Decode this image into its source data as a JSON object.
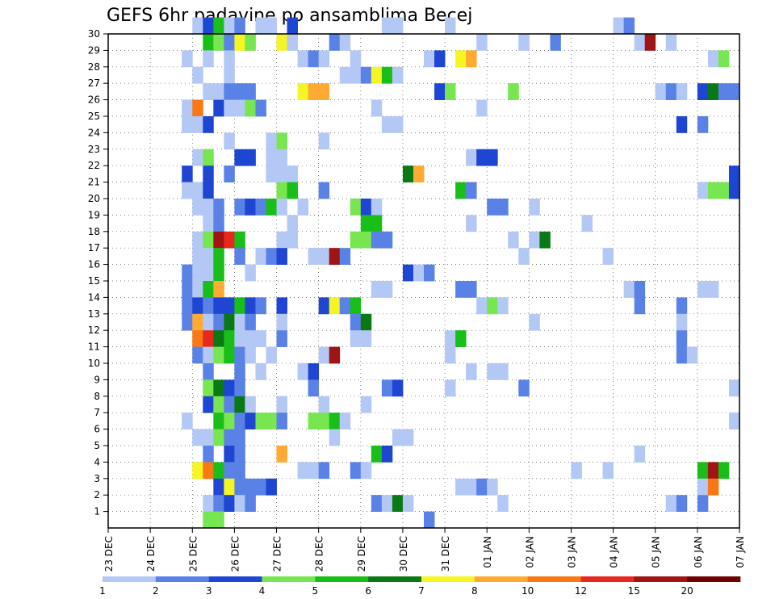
{
  "chart_data": {
    "type": "heatmap",
    "title": "GEFS 6hr padavine po ansamblima Becej",
    "xlabel": "",
    "ylabel": "",
    "x_ticks": [
      "23 DEC",
      "24 DEC",
      "25 DEC",
      "26 DEC",
      "27 DEC",
      "28 DEC",
      "29 DEC",
      "30 DEC",
      "31 DEC",
      "01 JAN",
      "02 JAN",
      "03 JAN",
      "04 JAN",
      "05 JAN",
      "06 JAN",
      "07 JAN"
    ],
    "y_ticks": [
      "1",
      "2",
      "3",
      "4",
      "5",
      "6",
      "7",
      "8",
      "9",
      "10",
      "11",
      "12",
      "13",
      "14",
      "15",
      "16",
      "17",
      "18",
      "19",
      "20",
      "21",
      "22",
      "23",
      "24",
      "25",
      "26",
      "27",
      "28",
      "29",
      "30"
    ],
    "x_unit": "6-hour step (4 per day)",
    "grid": true,
    "legend": {
      "position": "bottom",
      "labels": [
        "1",
        "2",
        "3",
        "4",
        "5",
        "6",
        "7",
        "8",
        "10",
        "12",
        "15",
        "20"
      ],
      "colors": [
        "#b4c8f5",
        "#5a82e6",
        "#1e46d2",
        "#78e650",
        "#19be19",
        "#0a7814",
        "#f5f523",
        "#ffaa32",
        "#fa7814",
        "#e6281e",
        "#a01414",
        "#6e0000"
      ]
    },
    "cells_encoding": "[member, timestep (0 = 23 DEC 00z), color class 0-11]",
    "cells": [
      [
        30,
        8,
        0
      ],
      [
        30,
        9,
        2
      ],
      [
        30,
        10,
        4
      ],
      [
        30,
        11,
        0
      ],
      [
        30,
        12,
        1
      ],
      [
        30,
        14,
        0
      ],
      [
        30,
        15,
        0
      ],
      [
        30,
        17,
        2
      ],
      [
        30,
        26,
        0
      ],
      [
        30,
        27,
        0
      ],
      [
        30,
        32,
        0
      ],
      [
        30,
        48,
        0
      ],
      [
        30,
        49,
        1
      ],
      [
        29,
        9,
        4
      ],
      [
        29,
        10,
        3
      ],
      [
        29,
        11,
        1
      ],
      [
        29,
        12,
        6
      ],
      [
        29,
        13,
        3
      ],
      [
        29,
        16,
        6
      ],
      [
        29,
        17,
        0
      ],
      [
        29,
        21,
        1
      ],
      [
        29,
        22,
        0
      ],
      [
        29,
        35,
        0
      ],
      [
        29,
        39,
        0
      ],
      [
        29,
        42,
        1
      ],
      [
        29,
        50,
        0
      ],
      [
        29,
        51,
        10
      ],
      [
        29,
        53,
        0
      ],
      [
        28,
        7,
        0
      ],
      [
        28,
        9,
        0
      ],
      [
        28,
        11,
        0
      ],
      [
        28,
        18,
        0
      ],
      [
        28,
        19,
        1
      ],
      [
        28,
        20,
        0
      ],
      [
        28,
        23,
        0
      ],
      [
        28,
        30,
        0
      ],
      [
        28,
        31,
        2
      ],
      [
        28,
        33,
        6
      ],
      [
        28,
        34,
        7
      ],
      [
        28,
        57,
        0
      ],
      [
        28,
        58,
        3
      ],
      [
        27,
        8,
        0
      ],
      [
        27,
        11,
        0
      ],
      [
        27,
        22,
        0
      ],
      [
        27,
        23,
        0
      ],
      [
        27,
        24,
        1
      ],
      [
        27,
        25,
        6
      ],
      [
        27,
        26,
        4
      ],
      [
        27,
        27,
        0
      ],
      [
        26,
        9,
        0
      ],
      [
        26,
        10,
        0
      ],
      [
        26,
        11,
        1
      ],
      [
        26,
        12,
        1
      ],
      [
        26,
        13,
        1
      ],
      [
        26,
        18,
        6
      ],
      [
        26,
        19,
        7
      ],
      [
        26,
        20,
        7
      ],
      [
        26,
        31,
        2
      ],
      [
        26,
        32,
        3
      ],
      [
        26,
        38,
        3
      ],
      [
        26,
        52,
        0
      ],
      [
        26,
        53,
        1
      ],
      [
        26,
        54,
        0
      ],
      [
        26,
        56,
        2
      ],
      [
        26,
        57,
        5
      ],
      [
        26,
        58,
        1
      ],
      [
        26,
        59,
        1
      ],
      [
        25,
        7,
        0
      ],
      [
        25,
        8,
        8
      ],
      [
        25,
        10,
        2
      ],
      [
        25,
        11,
        0
      ],
      [
        25,
        12,
        0
      ],
      [
        25,
        13,
        3
      ],
      [
        25,
        14,
        1
      ],
      [
        25,
        25,
        0
      ],
      [
        25,
        35,
        0
      ],
      [
        24,
        7,
        0
      ],
      [
        24,
        8,
        0
      ],
      [
        24,
        9,
        2
      ],
      [
        24,
        26,
        0
      ],
      [
        24,
        27,
        0
      ],
      [
        24,
        54,
        2
      ],
      [
        24,
        56,
        1
      ],
      [
        23,
        11,
        0
      ],
      [
        23,
        15,
        0
      ],
      [
        23,
        16,
        3
      ],
      [
        23,
        20,
        0
      ],
      [
        22,
        8,
        0
      ],
      [
        22,
        9,
        3
      ],
      [
        22,
        12,
        2
      ],
      [
        22,
        13,
        2
      ],
      [
        22,
        15,
        0
      ],
      [
        22,
        16,
        0
      ],
      [
        22,
        34,
        0
      ],
      [
        22,
        35,
        2
      ],
      [
        22,
        36,
        2
      ],
      [
        21,
        7,
        2
      ],
      [
        21,
        9,
        2
      ],
      [
        21,
        11,
        1
      ],
      [
        21,
        15,
        0
      ],
      [
        21,
        16,
        0
      ],
      [
        21,
        17,
        0
      ],
      [
        21,
        28,
        5
      ],
      [
        21,
        29,
        7
      ],
      [
        21,
        59,
        2
      ],
      [
        20,
        7,
        0
      ],
      [
        20,
        8,
        0
      ],
      [
        20,
        9,
        2
      ],
      [
        20,
        16,
        3
      ],
      [
        20,
        17,
        4
      ],
      [
        20,
        20,
        1
      ],
      [
        20,
        33,
        4
      ],
      [
        20,
        34,
        1
      ],
      [
        20,
        56,
        0
      ],
      [
        20,
        57,
        3
      ],
      [
        20,
        58,
        3
      ],
      [
        20,
        59,
        2
      ],
      [
        19,
        8,
        0
      ],
      [
        19,
        9,
        0
      ],
      [
        19,
        10,
        1
      ],
      [
        19,
        12,
        1
      ],
      [
        19,
        13,
        2
      ],
      [
        19,
        14,
        1
      ],
      [
        19,
        15,
        4
      ],
      [
        19,
        16,
        0
      ],
      [
        19,
        18,
        0
      ],
      [
        19,
        23,
        3
      ],
      [
        19,
        24,
        2
      ],
      [
        19,
        25,
        0
      ],
      [
        19,
        36,
        1
      ],
      [
        19,
        37,
        1
      ],
      [
        19,
        40,
        0
      ],
      [
        18,
        9,
        0
      ],
      [
        18,
        10,
        1
      ],
      [
        18,
        17,
        0
      ],
      [
        18,
        24,
        4
      ],
      [
        18,
        25,
        4
      ],
      [
        18,
        34,
        0
      ],
      [
        18,
        45,
        0
      ],
      [
        17,
        8,
        0
      ],
      [
        17,
        9,
        3
      ],
      [
        17,
        10,
        10
      ],
      [
        17,
        11,
        9
      ],
      [
        17,
        12,
        4
      ],
      [
        17,
        16,
        0
      ],
      [
        17,
        17,
        0
      ],
      [
        17,
        23,
        3
      ],
      [
        17,
        24,
        3
      ],
      [
        17,
        25,
        1
      ],
      [
        17,
        26,
        1
      ],
      [
        17,
        38,
        0
      ],
      [
        17,
        40,
        0
      ],
      [
        17,
        41,
        5
      ],
      [
        16,
        8,
        0
      ],
      [
        16,
        9,
        0
      ],
      [
        16,
        10,
        4
      ],
      [
        16,
        12,
        1
      ],
      [
        16,
        14,
        0
      ],
      [
        16,
        15,
        1
      ],
      [
        16,
        16,
        2
      ],
      [
        16,
        19,
        0
      ],
      [
        16,
        20,
        0
      ],
      [
        16,
        21,
        10
      ],
      [
        16,
        22,
        1
      ],
      [
        16,
        39,
        0
      ],
      [
        16,
        47,
        0
      ],
      [
        15,
        7,
        1
      ],
      [
        15,
        8,
        0
      ],
      [
        15,
        9,
        0
      ],
      [
        15,
        10,
        4
      ],
      [
        15,
        13,
        0
      ],
      [
        15,
        28,
        2
      ],
      [
        15,
        29,
        0
      ],
      [
        15,
        30,
        1
      ],
      [
        14,
        7,
        1
      ],
      [
        14,
        8,
        0
      ],
      [
        14,
        9,
        4
      ],
      [
        14,
        10,
        7
      ],
      [
        14,
        25,
        0
      ],
      [
        14,
        26,
        0
      ],
      [
        14,
        33,
        1
      ],
      [
        14,
        34,
        1
      ],
      [
        14,
        49,
        0
      ],
      [
        14,
        50,
        1
      ],
      [
        14,
        56,
        0
      ],
      [
        14,
        57,
        0
      ],
      [
        13,
        7,
        1
      ],
      [
        13,
        8,
        2
      ],
      [
        13,
        9,
        1
      ],
      [
        13,
        10,
        2
      ],
      [
        13,
        11,
        2
      ],
      [
        13,
        12,
        4
      ],
      [
        13,
        13,
        2
      ],
      [
        13,
        14,
        1
      ],
      [
        13,
        16,
        2
      ],
      [
        13,
        20,
        2
      ],
      [
        13,
        21,
        6
      ],
      [
        13,
        22,
        1
      ],
      [
        13,
        23,
        4
      ],
      [
        13,
        35,
        0
      ],
      [
        13,
        36,
        3
      ],
      [
        13,
        37,
        0
      ],
      [
        13,
        50,
        1
      ],
      [
        13,
        54,
        1
      ],
      [
        12,
        7,
        1
      ],
      [
        12,
        8,
        7
      ],
      [
        12,
        9,
        0
      ],
      [
        12,
        10,
        1
      ],
      [
        12,
        11,
        5
      ],
      [
        12,
        12,
        0
      ],
      [
        12,
        13,
        1
      ],
      [
        12,
        16,
        0
      ],
      [
        12,
        23,
        1
      ],
      [
        12,
        24,
        5
      ],
      [
        12,
        40,
        0
      ],
      [
        12,
        54,
        0
      ],
      [
        11,
        8,
        8
      ],
      [
        11,
        9,
        9
      ],
      [
        11,
        10,
        5
      ],
      [
        11,
        11,
        4
      ],
      [
        11,
        12,
        0
      ],
      [
        11,
        13,
        0
      ],
      [
        11,
        14,
        0
      ],
      [
        11,
        16,
        1
      ],
      [
        11,
        23,
        0
      ],
      [
        11,
        24,
        0
      ],
      [
        11,
        32,
        0
      ],
      [
        11,
        33,
        4
      ],
      [
        11,
        54,
        1
      ],
      [
        10,
        8,
        1
      ],
      [
        10,
        9,
        0
      ],
      [
        10,
        10,
        3
      ],
      [
        10,
        11,
        4
      ],
      [
        10,
        12,
        1
      ],
      [
        10,
        13,
        0
      ],
      [
        10,
        15,
        0
      ],
      [
        10,
        20,
        0
      ],
      [
        10,
        21,
        10
      ],
      [
        10,
        32,
        0
      ],
      [
        10,
        54,
        1
      ],
      [
        10,
        55,
        0
      ],
      [
        9,
        9,
        1
      ],
      [
        9,
        12,
        1
      ],
      [
        9,
        14,
        0
      ],
      [
        9,
        18,
        0
      ],
      [
        9,
        19,
        2
      ],
      [
        9,
        34,
        0
      ],
      [
        9,
        36,
        0
      ],
      [
        9,
        37,
        0
      ],
      [
        8,
        9,
        3
      ],
      [
        8,
        10,
        5
      ],
      [
        8,
        11,
        2
      ],
      [
        8,
        12,
        1
      ],
      [
        8,
        19,
        1
      ],
      [
        8,
        26,
        1
      ],
      [
        8,
        27,
        2
      ],
      [
        8,
        32,
        0
      ],
      [
        8,
        39,
        1
      ],
      [
        8,
        59,
        0
      ],
      [
        7,
        9,
        2
      ],
      [
        7,
        10,
        3
      ],
      [
        7,
        11,
        1
      ],
      [
        7,
        12,
        5
      ],
      [
        7,
        13,
        0
      ],
      [
        7,
        16,
        0
      ],
      [
        7,
        20,
        0
      ],
      [
        7,
        24,
        0
      ],
      [
        6,
        7,
        0
      ],
      [
        6,
        10,
        4
      ],
      [
        6,
        11,
        3
      ],
      [
        6,
        12,
        1
      ],
      [
        6,
        13,
        2
      ],
      [
        6,
        14,
        3
      ],
      [
        6,
        15,
        3
      ],
      [
        6,
        16,
        1
      ],
      [
        6,
        19,
        3
      ],
      [
        6,
        20,
        3
      ],
      [
        6,
        21,
        4
      ],
      [
        6,
        22,
        0
      ],
      [
        6,
        59,
        0
      ],
      [
        5,
        8,
        0
      ],
      [
        5,
        9,
        0
      ],
      [
        5,
        10,
        3
      ],
      [
        5,
        11,
        1
      ],
      [
        5,
        12,
        1
      ],
      [
        5,
        21,
        0
      ],
      [
        5,
        27,
        0
      ],
      [
        5,
        28,
        0
      ],
      [
        4,
        9,
        1
      ],
      [
        4,
        11,
        2
      ],
      [
        4,
        12,
        1
      ],
      [
        4,
        16,
        7
      ],
      [
        4,
        25,
        4
      ],
      [
        4,
        26,
        2
      ],
      [
        4,
        50,
        0
      ],
      [
        3,
        8,
        6
      ],
      [
        3,
        9,
        8
      ],
      [
        3,
        10,
        4
      ],
      [
        3,
        11,
        1
      ],
      [
        3,
        12,
        1
      ],
      [
        3,
        18,
        0
      ],
      [
        3,
        19,
        0
      ],
      [
        3,
        20,
        1
      ],
      [
        3,
        23,
        1
      ],
      [
        3,
        24,
        0
      ],
      [
        3,
        44,
        0
      ],
      [
        3,
        47,
        0
      ],
      [
        3,
        56,
        4
      ],
      [
        3,
        57,
        10
      ],
      [
        3,
        58,
        4
      ],
      [
        2,
        10,
        2
      ],
      [
        2,
        11,
        6
      ],
      [
        2,
        12,
        1
      ],
      [
        2,
        13,
        1
      ],
      [
        2,
        14,
        1
      ],
      [
        2,
        15,
        2
      ],
      [
        2,
        33,
        0
      ],
      [
        2,
        34,
        0
      ],
      [
        2,
        35,
        1
      ],
      [
        2,
        36,
        0
      ],
      [
        2,
        56,
        0
      ],
      [
        2,
        57,
        8
      ],
      [
        1,
        9,
        0
      ],
      [
        1,
        10,
        1
      ],
      [
        1,
        11,
        2
      ],
      [
        1,
        12,
        0
      ],
      [
        1,
        13,
        1
      ],
      [
        1,
        25,
        1
      ],
      [
        1,
        26,
        0
      ],
      [
        1,
        27,
        5
      ],
      [
        1,
        28,
        0
      ],
      [
        1,
        37,
        0
      ],
      [
        1,
        53,
        0
      ],
      [
        1,
        54,
        1
      ],
      [
        1,
        56,
        1
      ],
      [
        0,
        9,
        3
      ],
      [
        0,
        10,
        3
      ],
      [
        0,
        30,
        1
      ]
    ]
  }
}
